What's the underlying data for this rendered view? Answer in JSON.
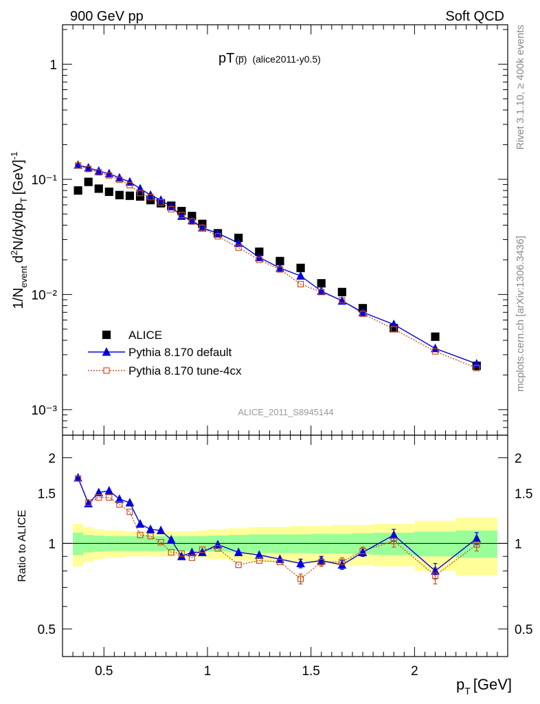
{
  "header": {
    "left": "900 GeV pp",
    "right": "Soft QCD"
  },
  "plot": {
    "title_main": "pT",
    "title_particle": "(p̅)",
    "title_tag": "(alice2011-y0.5)",
    "watermark": "ALICE_2011_S8945144",
    "side_rivet": "Rivet 3.1.10, ≥ 400k events",
    "side_mcplots": "mcplots.cern.ch [arXiv:1306.3436]",
    "ylabel_main": "1/N_event d²N/dy/dp_T [GeV]⁻¹",
    "ylabel_ratio": "Ratio to ALICE",
    "xlabel": "p_T [GeV]"
  },
  "colors": {
    "data": "#000000",
    "pythia_default": "#0000dd",
    "pythia_4cx": "#c8501e",
    "band_inner": "#99ff99",
    "band_outer": "#ffff99"
  },
  "chart_data": {
    "type": "scatter",
    "x_range": [
      0.3,
      2.45
    ],
    "main": {
      "yscale": "log",
      "ylim": [
        0.0006,
        2.2
      ],
      "yticks": [
        {
          "value": 1,
          "label": "1"
        },
        {
          "value": 0.1,
          "label": "10⁻¹"
        },
        {
          "value": 0.01,
          "label": "10⁻²"
        },
        {
          "value": 0.001,
          "label": "10⁻³"
        }
      ]
    },
    "ratio": {
      "ylim": [
        0.4,
        2.4
      ],
      "yticks": [
        {
          "value": 2,
          "label": "2"
        },
        {
          "value": 1.5,
          "label": "1.5"
        },
        {
          "value": 1,
          "label": "1"
        },
        {
          "value": 0.5,
          "label": "0.5"
        }
      ],
      "bands": {
        "edges": [
          0.35,
          0.4,
          0.45,
          0.5,
          0.55,
          0.6,
          0.65,
          0.7,
          0.75,
          0.8,
          0.85,
          0.9,
          0.95,
          1.0,
          1.1,
          1.2,
          1.3,
          1.4,
          1.5,
          1.6,
          1.7,
          1.8,
          2.0,
          2.2,
          2.4
        ],
        "inner": [
          0.09,
          0.07,
          0.065,
          0.06,
          0.06,
          0.06,
          0.06,
          0.06,
          0.06,
          0.06,
          0.06,
          0.06,
          0.06,
          0.065,
          0.07,
          0.075,
          0.075,
          0.075,
          0.08,
          0.08,
          0.085,
          0.09,
          0.1,
          0.11
        ],
        "outer": [
          0.17,
          0.14,
          0.12,
          0.11,
          0.11,
          0.1,
          0.1,
          0.1,
          0.1,
          0.1,
          0.1,
          0.1,
          0.11,
          0.12,
          0.13,
          0.14,
          0.14,
          0.15,
          0.15,
          0.16,
          0.16,
          0.17,
          0.2,
          0.23
        ]
      }
    },
    "xticks": [
      {
        "value": 0.5,
        "label": "0.5"
      },
      {
        "value": 1,
        "label": "1"
      },
      {
        "value": 1.5,
        "label": "1.5"
      },
      {
        "value": 2,
        "label": "2"
      }
    ],
    "legend": {
      "position": "lower-left",
      "entries": [
        "ALICE",
        "Pythia 8.170 default",
        "Pythia 8.170 tune-4cx"
      ]
    },
    "x": [
      0.375,
      0.425,
      0.475,
      0.525,
      0.575,
      0.625,
      0.675,
      0.725,
      0.775,
      0.825,
      0.875,
      0.925,
      0.975,
      1.05,
      1.15,
      1.25,
      1.35,
      1.45,
      1.55,
      1.65,
      1.75,
      1.9,
      2.1,
      2.3
    ],
    "series": [
      {
        "name": "ALICE",
        "values": [
          0.08,
          0.095,
          0.083,
          0.078,
          0.073,
          0.072,
          0.071,
          0.066,
          0.062,
          0.059,
          0.053,
          0.048,
          0.041,
          0.034,
          0.031,
          0.0235,
          0.0195,
          0.017,
          0.0125,
          0.0105,
          0.0076,
          0.0051,
          0.0043,
          0.0024
        ]
      },
      {
        "name": "Pythia 8.170 default",
        "values": [
          0.133,
          0.126,
          0.118,
          0.112,
          0.103,
          0.095,
          0.083,
          0.073,
          0.066,
          0.058,
          0.048,
          0.044,
          0.038,
          0.034,
          0.028,
          0.021,
          0.017,
          0.0145,
          0.0107,
          0.0088,
          0.007,
          0.0055,
          0.0034,
          0.0025
        ]
      },
      {
        "name": "Pythia 8.170 tune-4cx",
        "values": [
          0.132,
          0.123,
          0.115,
          0.108,
          0.099,
          0.089,
          0.076,
          0.07,
          0.063,
          0.055,
          0.049,
          0.043,
          0.038,
          0.032,
          0.0255,
          0.02,
          0.0165,
          0.0123,
          0.0105,
          0.0089,
          0.0068,
          0.005,
          0.0032,
          0.0023
        ]
      }
    ],
    "ratio_series": [
      {
        "name": "Pythia 8.170 default",
        "values": [
          1.7,
          1.38,
          1.51,
          1.53,
          1.43,
          1.39,
          1.17,
          1.12,
          1.11,
          1.03,
          0.9,
          0.93,
          0.93,
          0.99,
          0.93,
          0.91,
          0.88,
          0.85,
          0.87,
          0.84,
          0.93,
          1.07,
          0.8,
          1.04
        ]
      },
      {
        "name": "Pythia 8.170 tune-4cx",
        "values": [
          1.69,
          1.39,
          1.45,
          1.45,
          1.37,
          1.29,
          1.07,
          1.06,
          1.01,
          0.93,
          0.92,
          0.89,
          0.95,
          0.96,
          0.84,
          0.87,
          0.86,
          0.75,
          0.86,
          0.86,
          0.94,
          1.02,
          0.77,
          0.99
        ]
      }
    ],
    "ratio_errors": [
      0,
      0,
      0,
      0,
      0,
      0,
      0,
      0,
      0,
      0,
      0,
      0,
      0,
      0,
      0,
      0,
      0,
      0.03,
      0.03,
      0.03,
      0.03,
      0.05,
      0.05,
      0.05
    ]
  }
}
